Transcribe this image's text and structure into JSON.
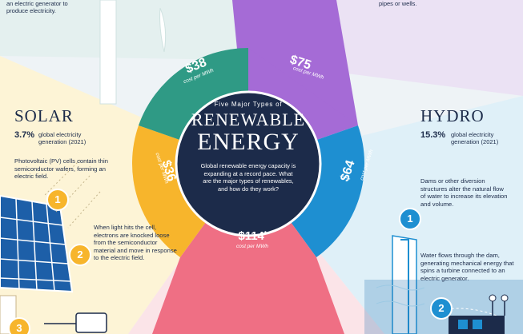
{
  "colors": {
    "navy": "#1c2b4a",
    "wind_teal": "#2f9a85",
    "geothermal_purple": "#a56bd6",
    "hydro_blue": "#1e8fd1",
    "biomass_pink": "#ef6f84",
    "solar_yellow": "#f7b52c",
    "solar_bg": "#fdf4d6",
    "hydro_bg": "#dff0f8"
  },
  "top_fragments": {
    "wind_text": "an electric generator to\nproduce electricity.",
    "geo_text": "pipes or wells."
  },
  "center": {
    "kicker": "Five Major Types of",
    "title_line1": "RENEWABLE",
    "title_line2": "ENERGY",
    "description": "Global renewable energy capacity is expanding at a record pace. What are the major types of renewables, and how do they work?"
  },
  "segments": {
    "wind": {
      "price": "$38",
      "unit": "cost per MWh"
    },
    "geothermal": {
      "price": "$75",
      "unit": "cost per MWh"
    },
    "hydro": {
      "price": "$64",
      "unit": "cost per MWh"
    },
    "biomass": {
      "price": "$114",
      "price_mark": "*",
      "unit": "cost per MWh"
    },
    "solar": {
      "price": "$36",
      "unit": "cost per MWh"
    }
  },
  "solar": {
    "title": "SOLAR",
    "share": "3.7%",
    "share_label": "global electricity\ngeneration (2021)",
    "intro": "Photovoltaic (PV) cells contain thin semiconductor wafers, forming an electric field.",
    "steps": [
      {
        "number": "1",
        "text": ""
      },
      {
        "number": "2",
        "text": "When light hits the cell, electrons are knocked loose from the semiconductor material and move in response to the electric field."
      },
      {
        "number": "3",
        "text": ""
      }
    ]
  },
  "hydro": {
    "title": "HYDRO",
    "share": "15.3%",
    "share_label": "global electricity\ngeneration (2021)",
    "intro": "Dams or other diversion structures alter the natural flow of water to increase its elevation and volume.",
    "steps": [
      {
        "number": "1",
        "text": ""
      },
      {
        "number": "2",
        "text": "Water flows through the dam, generating mechanical energy that spins a turbine connected to an electric generator."
      }
    ]
  }
}
